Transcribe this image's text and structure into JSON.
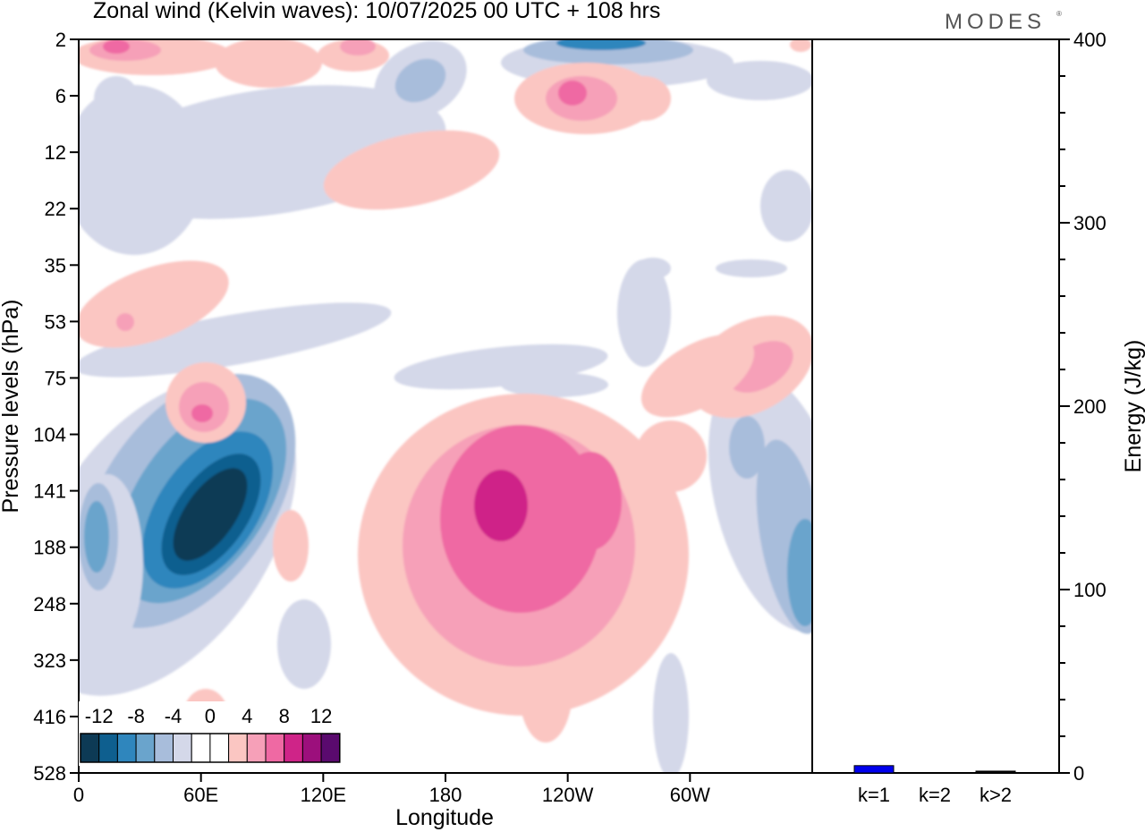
{
  "title": "Zonal wind (Kelvin waves):  10/07/2025  00 UTC  + 108 hrs",
  "logo": "MODES",
  "logo_mark": "®",
  "chart_data": [
    {
      "type": "heatmap",
      "title": "Zonal wind (Kelvin waves):  10/07/2025  00 UTC  + 108 hrs",
      "xlabel": "Longitude",
      "ylabel": "Pressure levels (hPa)",
      "x_ticks": [
        "0",
        "60E",
        "120E",
        "180",
        "120W",
        "60W"
      ],
      "x_tick_degrees": [
        0,
        60,
        120,
        180,
        240,
        300
      ],
      "x_range_degrees": [
        0,
        360
      ],
      "y_ticks": [
        "2",
        "6",
        "12",
        "22",
        "35",
        "53",
        "75",
        "104",
        "141",
        "188",
        "248",
        "323",
        "416",
        "528"
      ],
      "colorbar": {
        "tick_labels": [
          "-12",
          "-8",
          "-4",
          "0",
          "4",
          "8",
          "12"
        ],
        "colors": [
          "#0d3a55",
          "#0e5f8f",
          "#2f86bd",
          "#6aa4cc",
          "#a8bddb",
          "#d4d8e9",
          "#ffffff",
          "#ffffff",
          "#fbc6c2",
          "#f6a0b8",
          "#ef69a3",
          "#cf2488",
          "#9c0f7c",
          "#5a0a6e"
        ]
      },
      "features": [
        {
          "sign": "negative",
          "level": -14,
          "lon": 38,
          "pressure": 160
        },
        {
          "sign": "positive",
          "level": 11,
          "lon": 206,
          "pressure": 150
        },
        {
          "sign": "positive",
          "level": 5,
          "lon": 56,
          "pressure": 95
        },
        {
          "sign": "negative",
          "level": -10,
          "lon": 238,
          "pressure": 2
        },
        {
          "sign": "negative",
          "level": -6,
          "lon": 355,
          "pressure": 210
        }
      ]
    },
    {
      "type": "bar",
      "ylabel": "Energy (J/kg)",
      "ylim": [
        0,
        400
      ],
      "y_ticks": [
        0,
        100,
        200,
        300,
        400
      ],
      "categories": [
        "k=1",
        "k=2",
        "k>2"
      ],
      "values": [
        4,
        0,
        1
      ],
      "colors": [
        "#0000ee",
        "#0000ee",
        "#000000"
      ]
    }
  ]
}
